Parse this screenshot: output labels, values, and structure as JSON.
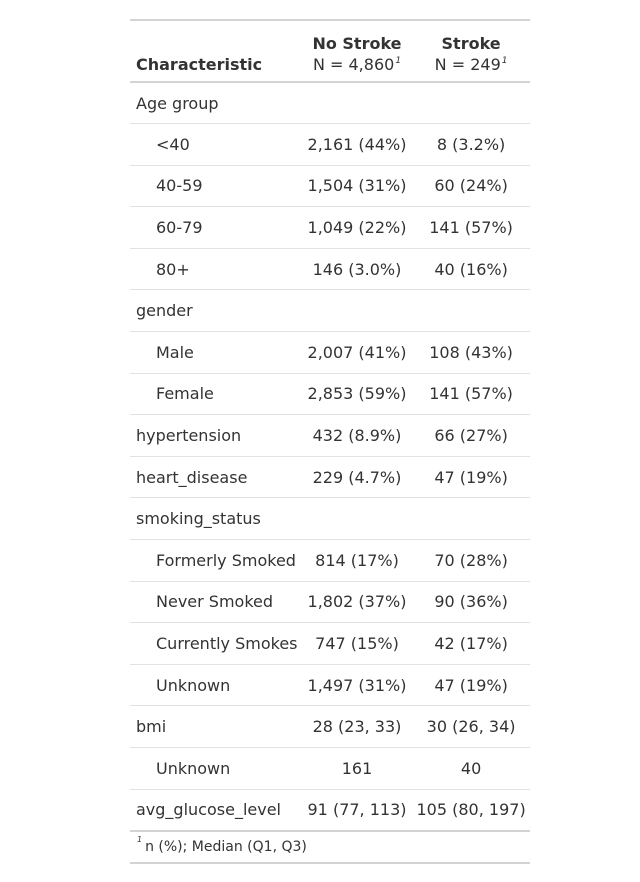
{
  "table": {
    "header": {
      "characteristic": "Characteristic",
      "col1_title": "No Stroke",
      "col1_n": "N = 4,860",
      "col2_title": "Stroke",
      "col2_n": "N = 249",
      "footnote_mark": "1"
    },
    "rows": [
      {
        "label": "Age group",
        "indent": false,
        "c1": "",
        "c2": ""
      },
      {
        "label": "<40",
        "indent": true,
        "c1": "2,161 (44%)",
        "c2": "8 (3.2%)"
      },
      {
        "label": "40-59",
        "indent": true,
        "c1": "1,504 (31%)",
        "c2": "60 (24%)"
      },
      {
        "label": "60-79",
        "indent": true,
        "c1": "1,049 (22%)",
        "c2": "141 (57%)"
      },
      {
        "label": "80+",
        "indent": true,
        "c1": "146 (3.0%)",
        "c2": "40 (16%)"
      },
      {
        "label": "gender",
        "indent": false,
        "c1": "",
        "c2": ""
      },
      {
        "label": "Male",
        "indent": true,
        "c1": "2,007 (41%)",
        "c2": "108 (43%)"
      },
      {
        "label": "Female",
        "indent": true,
        "c1": "2,853 (59%)",
        "c2": "141 (57%)"
      },
      {
        "label": "hypertension",
        "indent": false,
        "c1": "432 (8.9%)",
        "c2": "66 (27%)"
      },
      {
        "label": "heart_disease",
        "indent": false,
        "c1": "229 (4.7%)",
        "c2": "47 (19%)"
      },
      {
        "label": "smoking_status",
        "indent": false,
        "c1": "",
        "c2": ""
      },
      {
        "label": "Formerly Smoked",
        "indent": true,
        "c1": "814 (17%)",
        "c2": "70 (28%)"
      },
      {
        "label": "Never Smoked",
        "indent": true,
        "c1": "1,802 (37%)",
        "c2": "90 (36%)"
      },
      {
        "label": "Currently Smokes",
        "indent": true,
        "c1": "747 (15%)",
        "c2": "42 (17%)"
      },
      {
        "label": "Unknown",
        "indent": true,
        "c1": "1,497 (31%)",
        "c2": "47 (19%)"
      },
      {
        "label": "bmi",
        "indent": false,
        "c1": "28 (23, 33)",
        "c2": "30 (26, 34)"
      },
      {
        "label": "Unknown",
        "indent": true,
        "c1": "161",
        "c2": "40"
      },
      {
        "label": "avg_glucose_level",
        "indent": false,
        "c1": "91 (77, 113)",
        "c2": "105 (80, 197)"
      }
    ],
    "footnote": {
      "mark": "1",
      "text": "n (%); Median (Q1, Q3)"
    }
  }
}
